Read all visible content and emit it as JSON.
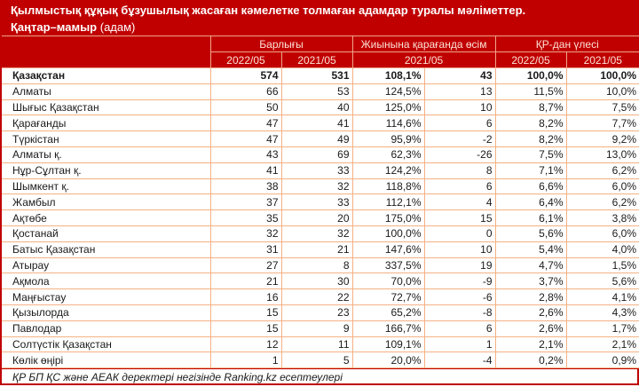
{
  "title": "Қылмыстық құқық бұзушылық жасаған кәмелетке толмаған адамдар туралы мәліметтер.",
  "subtitle": {
    "bold": "Қаңтар–мамыр",
    "unit": " (адам)"
  },
  "header": {
    "groups": [
      "Барлығы",
      "Жиынына қарағанда өсім",
      "ҚР-дан үлесі"
    ],
    "sub": [
      "2022/05",
      "2021/05",
      "2021/05",
      "2022/05",
      "2021/05"
    ]
  },
  "rows": [
    {
      "name": "Қазақстан",
      "v2022": "574",
      "v2021": "531",
      "pct": "108,1%",
      "diff": "43",
      "s2022": "100,0%",
      "s2021": "100,0%"
    },
    {
      "name": "Алматы",
      "v2022": "66",
      "v2021": "53",
      "pct": "124,5%",
      "diff": "13",
      "s2022": "11,5%",
      "s2021": "10,0%"
    },
    {
      "name": "Шығыс Қазақстан",
      "v2022": "50",
      "v2021": "40",
      "pct": "125,0%",
      "diff": "10",
      "s2022": "8,7%",
      "s2021": "7,5%"
    },
    {
      "name": "Қарағанды",
      "v2022": "47",
      "v2021": "41",
      "pct": "114,6%",
      "diff": "6",
      "s2022": "8,2%",
      "s2021": "7,7%"
    },
    {
      "name": "Түркістан",
      "v2022": "47",
      "v2021": "49",
      "pct": "95,9%",
      "diff": "-2",
      "s2022": "8,2%",
      "s2021": "9,2%"
    },
    {
      "name": "Алматы қ.",
      "v2022": "43",
      "v2021": "69",
      "pct": "62,3%",
      "diff": "-26",
      "s2022": "7,5%",
      "s2021": "13,0%"
    },
    {
      "name": "Нұр-Сұлтан қ.",
      "v2022": "41",
      "v2021": "33",
      "pct": "124,2%",
      "diff": "8",
      "s2022": "7,1%",
      "s2021": "6,2%"
    },
    {
      "name": "Шымкент қ.",
      "v2022": "38",
      "v2021": "32",
      "pct": "118,8%",
      "diff": "6",
      "s2022": "6,6%",
      "s2021": "6,0%"
    },
    {
      "name": "Жамбыл",
      "v2022": "37",
      "v2021": "33",
      "pct": "112,1%",
      "diff": "4",
      "s2022": "6,4%",
      "s2021": "6,2%"
    },
    {
      "name": "Ақтөбе",
      "v2022": "35",
      "v2021": "20",
      "pct": "175,0%",
      "diff": "15",
      "s2022": "6,1%",
      "s2021": "3,8%"
    },
    {
      "name": "Қостанай",
      "v2022": "32",
      "v2021": "32",
      "pct": "100,0%",
      "diff": "0",
      "s2022": "5,6%",
      "s2021": "6,0%"
    },
    {
      "name": "Батыс Қазақстан",
      "v2022": "31",
      "v2021": "21",
      "pct": "147,6%",
      "diff": "10",
      "s2022": "5,4%",
      "s2021": "4,0%"
    },
    {
      "name": "Атырау",
      "v2022": "27",
      "v2021": "8",
      "pct": "337,5%",
      "diff": "19",
      "s2022": "4,7%",
      "s2021": "1,5%"
    },
    {
      "name": "Ақмола",
      "v2022": "21",
      "v2021": "30",
      "pct": "70,0%",
      "diff": "-9",
      "s2022": "3,7%",
      "s2021": "5,6%"
    },
    {
      "name": "Маңғыстау",
      "v2022": "16",
      "v2021": "22",
      "pct": "72,7%",
      "diff": "-6",
      "s2022": "2,8%",
      "s2021": "4,1%"
    },
    {
      "name": "Қызылорда",
      "v2022": "15",
      "v2021": "23",
      "pct": "65,2%",
      "diff": "-8",
      "s2022": "2,6%",
      "s2021": "4,3%"
    },
    {
      "name": "Павлодар",
      "v2022": "15",
      "v2021": "9",
      "pct": "166,7%",
      "diff": "6",
      "s2022": "2,6%",
      "s2021": "1,7%"
    },
    {
      "name": "Солтүстік Қазақстан",
      "v2022": "12",
      "v2021": "11",
      "pct": "109,1%",
      "diff": "1",
      "s2022": "2,1%",
      "s2021": "2,1%"
    },
    {
      "name": "Көлік өңірі",
      "v2022": "1",
      "v2021": "5",
      "pct": "20,0%",
      "diff": "-4",
      "s2022": "0,2%",
      "s2021": "0,9%"
    }
  ],
  "footer": "ҚР БП ҚС және АЕАК деректері негізінде Ranking.kz есептеулері",
  "colors": {
    "header_bg": "#c00000",
    "grid": "#f4b183"
  }
}
